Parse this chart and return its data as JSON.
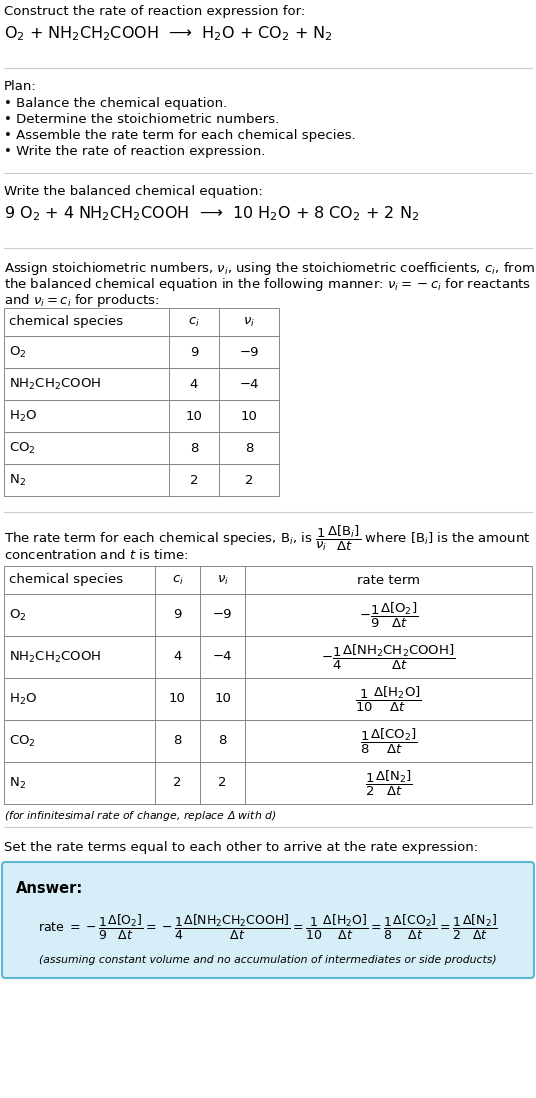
{
  "title": "Construct the rate of reaction expression for:",
  "rxn_unbalanced": "O$_2$ + NH$_2$CH$_2$COOH  ⟶  H$_2$O + CO$_2$ + N$_2$",
  "plan_header": "Plan:",
  "plan_items": [
    "• Balance the chemical equation.",
    "• Determine the stoichiometric numbers.",
    "• Assemble the rate term for each chemical species.",
    "• Write the rate of reaction expression."
  ],
  "balanced_header": "Write the balanced chemical equation:",
  "rxn_balanced": "9 O$_2$ + 4 NH$_2$CH$_2$COOH  ⟶  10 H$_2$O + 8 CO$_2$ + 2 N$_2$",
  "stoich_line1": "Assign stoichiometric numbers, $\\nu_i$, using the stoichiometric coefficients, $c_i$, from",
  "stoich_line2": "the balanced chemical equation in the following manner: $\\nu_i = -c_i$ for reactants",
  "stoich_line3": "and $\\nu_i = c_i$ for products:",
  "t1_h0": "chemical species",
  "t1_h1": "$c_i$",
  "t1_h2": "$\\nu_i$",
  "t1_rows": [
    [
      "O$_2$",
      "9",
      "−9"
    ],
    [
      "NH$_2$CH$_2$COOH",
      "4",
      "−4"
    ],
    [
      "H$_2$O",
      "10",
      "10"
    ],
    [
      "CO$_2$",
      "8",
      "8"
    ],
    [
      "N$_2$",
      "2",
      "2"
    ]
  ],
  "rate_line1": "The rate term for each chemical species, B$_i$, is $\\dfrac{1}{\\nu_i}\\dfrac{\\Delta[\\mathrm{B}_i]}{\\Delta t}$ where [B$_i$] is the amount",
  "rate_line2": "concentration and $t$ is time:",
  "t2_h0": "chemical species",
  "t2_h1": "$c_i$",
  "t2_h2": "$\\nu_i$",
  "t2_h3": "rate term",
  "t2_col0": [
    "O$_2$",
    "NH$_2$CH$_2$COOH",
    "H$_2$O",
    "CO$_2$",
    "N$_2$"
  ],
  "t2_col1": [
    "9",
    "4",
    "10",
    "8",
    "2"
  ],
  "t2_col2": [
    "−9",
    "−4",
    "10",
    "8",
    "2"
  ],
  "t2_rate": [
    "$-\\dfrac{1}{9}\\dfrac{\\Delta[\\mathrm{O_2}]}{\\Delta t}$",
    "$-\\dfrac{1}{4}\\dfrac{\\Delta[\\mathrm{NH_2CH_2COOH}]}{\\Delta t}$",
    "$\\dfrac{1}{10}\\dfrac{\\Delta[\\mathrm{H_2O}]}{\\Delta t}$",
    "$\\dfrac{1}{8}\\dfrac{\\Delta[\\mathrm{CO_2}]}{\\Delta t}$",
    "$\\dfrac{1}{2}\\dfrac{\\Delta[\\mathrm{N_2}]}{\\Delta t}$"
  ],
  "infin_note": "(for infinitesimal rate of change, replace Δ with $d$)",
  "set_equal": "Set the rate terms equal to each other to arrive at the rate expression:",
  "answer_label": "Answer:",
  "rate_expr": "rate $= -\\dfrac{1}{9}\\dfrac{\\Delta[\\mathrm{O_2}]}{\\Delta t} = -\\dfrac{1}{4}\\dfrac{\\Delta[\\mathrm{NH_2CH_2COOH}]}{\\Delta t} = \\dfrac{1}{10}\\dfrac{\\Delta[\\mathrm{H_2O}]}{\\Delta t} = \\dfrac{1}{8}\\dfrac{\\Delta[\\mathrm{CO_2}]}{\\Delta t} = \\dfrac{1}{2}\\dfrac{\\Delta[\\mathrm{N_2}]}{\\Delta t}$",
  "assuming": "(assuming constant volume and no accumulation of intermediates or side products)",
  "bg": "#ffffff",
  "fg": "#000000",
  "sep_color": "#cccccc",
  "tbl_color": "#888888",
  "ans_bg": "#d6eef8",
  "ans_border": "#5bb8d4"
}
